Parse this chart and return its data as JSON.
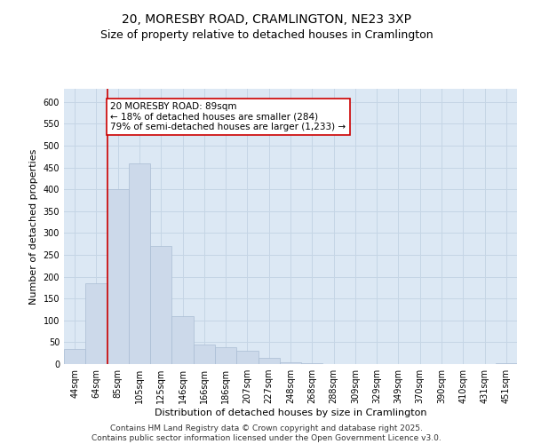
{
  "title_line1": "20, MORESBY ROAD, CRAMLINGTON, NE23 3XP",
  "title_line2": "Size of property relative to detached houses in Cramlington",
  "xlabel": "Distribution of detached houses by size in Cramlington",
  "ylabel": "Number of detached properties",
  "bar_color": "#ccd9ea",
  "bar_edge_color": "#aabdd4",
  "grid_color": "#c5d5e5",
  "background_color": "#dce8f4",
  "categories": [
    "44sqm",
    "64sqm",
    "85sqm",
    "105sqm",
    "125sqm",
    "146sqm",
    "166sqm",
    "186sqm",
    "207sqm",
    "227sqm",
    "248sqm",
    "268sqm",
    "288sqm",
    "309sqm",
    "329sqm",
    "349sqm",
    "370sqm",
    "390sqm",
    "410sqm",
    "431sqm",
    "451sqm"
  ],
  "values": [
    35,
    185,
    400,
    460,
    270,
    110,
    45,
    38,
    30,
    15,
    5,
    2,
    1,
    0,
    0,
    0,
    0,
    0,
    0,
    0,
    3
  ],
  "ylim": [
    0,
    630
  ],
  "yticks": [
    0,
    50,
    100,
    150,
    200,
    250,
    300,
    350,
    400,
    450,
    500,
    550,
    600
  ],
  "annotation_text": "20 MORESBY ROAD: 89sqm\n← 18% of detached houses are smaller (284)\n79% of semi-detached houses are larger (1,233) →",
  "annotation_box_color": "#ffffff",
  "annotation_box_edge": "#cc0000",
  "red_line_color": "#cc0000",
  "red_line_bin": 2,
  "footer_line1": "Contains HM Land Registry data © Crown copyright and database right 2025.",
  "footer_line2": "Contains public sector information licensed under the Open Government Licence v3.0.",
  "title_fontsize": 10,
  "subtitle_fontsize": 9,
  "axis_label_fontsize": 8,
  "tick_fontsize": 7,
  "annotation_fontsize": 7.5,
  "footer_fontsize": 6.5
}
